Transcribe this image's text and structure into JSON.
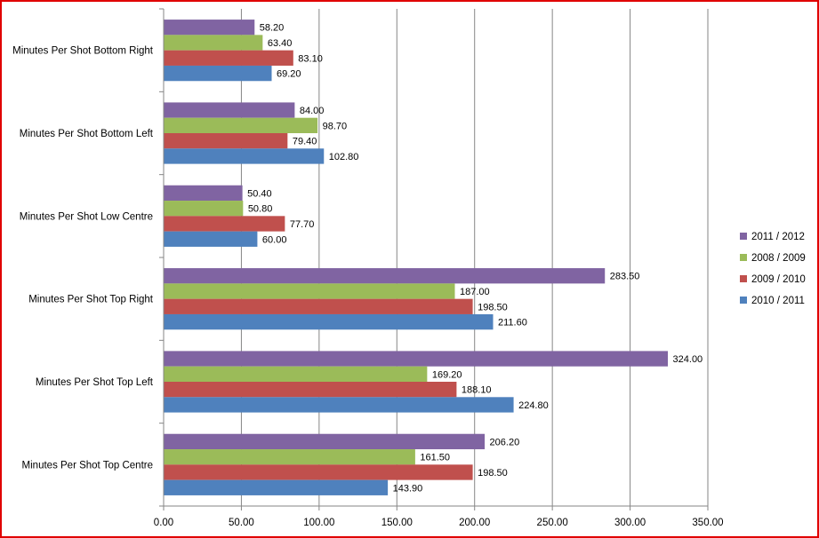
{
  "chart_data": {
    "type": "bar",
    "orientation": "horizontal",
    "title": "",
    "xlabel": "",
    "ylabel": "",
    "xlim": [
      0,
      350
    ],
    "ticks": [
      "0.00",
      "50.00",
      "100.00",
      "150.00",
      "200.00",
      "250.00",
      "300.00",
      "350.00"
    ],
    "grid": true,
    "legend_position": "right",
    "categories": [
      "Minutes Per Shot Bottom  Right",
      "Minutes Per Shot Bottom  Left",
      "Minutes Per Shot Low Centre",
      "Minutes Per Shot Top Right",
      "Minutes Per Shot Top Left",
      "Minutes Per Shot Top Centre"
    ],
    "series": [
      {
        "name": "2011 / 2012",
        "color": "#8064a2",
        "values": [
          58.2,
          84.0,
          50.4,
          283.5,
          324.0,
          206.2
        ],
        "labels": [
          "58.20",
          "84.00",
          "50.40",
          "283.50",
          "324.00",
          "206.20"
        ]
      },
      {
        "name": "2008 / 2009",
        "color": "#9bbb59",
        "values": [
          63.4,
          98.7,
          50.8,
          187.0,
          169.2,
          161.5
        ],
        "labels": [
          "63.40",
          "98.70",
          "50.80",
          "187.00",
          "169.20",
          "161.50"
        ]
      },
      {
        "name": "2009 / 2010",
        "color": "#c0504d",
        "values": [
          83.1,
          79.4,
          77.7,
          198.5,
          188.1,
          198.5
        ],
        "labels": [
          "83.10",
          "79.40",
          "77.70",
          "198.50",
          "188.10",
          "198.50"
        ]
      },
      {
        "name": "2010 / 2011",
        "color": "#4f81bd",
        "values": [
          69.2,
          102.8,
          60.0,
          211.6,
          224.8,
          143.9
        ],
        "labels": [
          "69.20",
          "102.80",
          "60.00",
          "211.60",
          "224.80",
          "143.90"
        ]
      }
    ]
  }
}
